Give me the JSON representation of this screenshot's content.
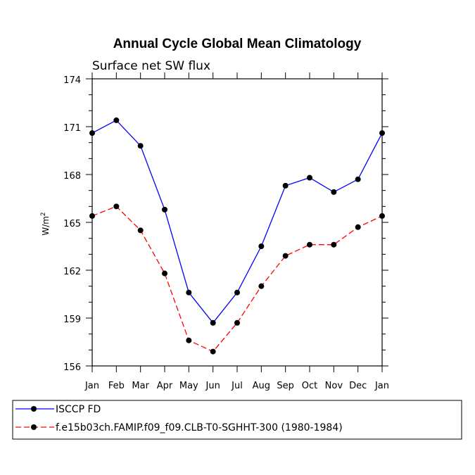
{
  "chart_data": {
    "type": "line",
    "title": "Annual Cycle Global Mean Climatology",
    "subtitle": "Surface net SW flux",
    "xlabel": "",
    "ylabel": "W/m",
    "ylabel_sup": "2",
    "categories": [
      "Jan",
      "Feb",
      "Mar",
      "Apr",
      "May",
      "Jun",
      "Jul",
      "Aug",
      "Sep",
      "Oct",
      "Nov",
      "Dec",
      "Jan"
    ],
    "ylim": [
      156,
      174
    ],
    "yticks": [
      156,
      159,
      162,
      165,
      168,
      171,
      174
    ],
    "grid": false,
    "legend_position": "bottom",
    "series": [
      {
        "name": "ISCCP FD",
        "color": "#0000ff",
        "dash": "solid",
        "values": [
          170.6,
          171.4,
          169.8,
          165.8,
          160.6,
          158.7,
          160.6,
          163.5,
          167.3,
          167.8,
          166.9,
          167.7,
          170.6
        ]
      },
      {
        "name": "f.e15b03ch.FAMIP.f09_f09.CLB-T0-SGHHT-300 (1980-1984)",
        "color": "#ff0000",
        "dash": "dashed",
        "values": [
          165.4,
          166.0,
          164.5,
          161.8,
          157.6,
          156.9,
          158.7,
          161.0,
          162.9,
          163.6,
          163.6,
          164.7,
          165.4
        ]
      }
    ]
  }
}
